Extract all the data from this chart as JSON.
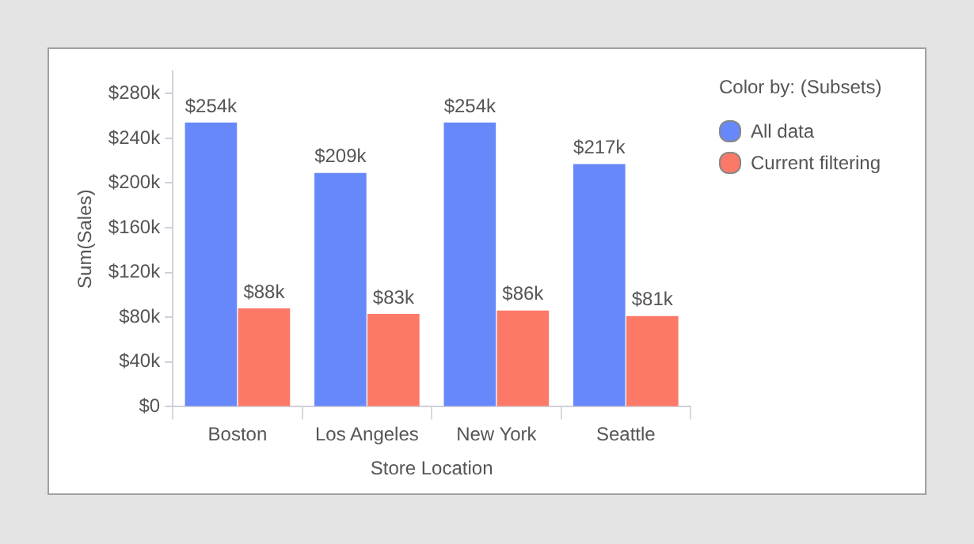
{
  "chart_data": {
    "type": "bar",
    "xlabel": "Store Location",
    "ylabel": "Sum(Sales)",
    "legend_title": "Color by: (Subsets)",
    "categories": [
      "Boston",
      "Los Angeles",
      "New York",
      "Seattle"
    ],
    "series": [
      {
        "name": "All data",
        "color": "#6688fa",
        "values": [
          254000,
          209000,
          254000,
          217000
        ],
        "value_labels": [
          "$254k",
          "$209k",
          "$254k",
          "$217k"
        ]
      },
      {
        "name": "Current filtering",
        "color": "#fc7867",
        "values": [
          88000,
          83000,
          86000,
          81000
        ],
        "value_labels": [
          "$88k",
          "$83k",
          "$86k",
          "$81k"
        ]
      }
    ],
    "ylim": [
      0,
      300000
    ],
    "yticks": [
      {
        "value": 0,
        "label": "$0"
      },
      {
        "value": 40000,
        "label": "$40k"
      },
      {
        "value": 80000,
        "label": "$80k"
      },
      {
        "value": 120000,
        "label": "$120k"
      },
      {
        "value": 160000,
        "label": "$160k"
      },
      {
        "value": 200000,
        "label": "$200k"
      },
      {
        "value": 240000,
        "label": "$240k"
      },
      {
        "value": 280000,
        "label": "$280k"
      }
    ],
    "grid": false,
    "legend": "top right"
  }
}
